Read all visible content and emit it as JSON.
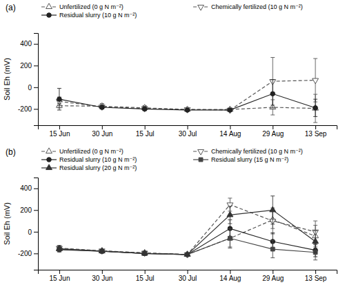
{
  "chart_data": [
    {
      "type": "line",
      "title": "(a)",
      "ylabel": "Soil Eh (mV)",
      "categories": [
        "15 Jun",
        "30 Jun",
        "15 Jul",
        "30 Jul",
        "14 Aug",
        "29 Aug",
        "13 Sep"
      ],
      "series": [
        {
          "name": "Unfertilized (0 g N m⁻²)",
          "color": "#555555",
          "marker": "triangle-up-open",
          "line_style": "dashed",
          "values": [
            -170,
            -175,
            -190,
            -205,
            -205,
            -185,
            -195
          ],
          "errors": [
            20,
            25,
            20,
            15,
            15,
            70,
            130
          ]
        },
        {
          "name": "Chemically fertilized (10 g N m⁻²)",
          "color": "#555555",
          "marker": "triangle-down-open",
          "line_style": "dashed",
          "values": [
            -130,
            -180,
            -195,
            -205,
            -210,
            55,
            65
          ],
          "errors": [
            40,
            20,
            20,
            15,
            15,
            220,
            200
          ]
        },
        {
          "name": "Residual slurry (10 g N m⁻²)",
          "color": "#222222",
          "marker": "circle",
          "line_style": "solid",
          "values": [
            -110,
            -185,
            -200,
            -210,
            -210,
            -60,
            -190
          ],
          "errors": [
            100,
            15,
            15,
            10,
            10,
            130,
            80
          ]
        }
      ],
      "ylim": [
        -350,
        500
      ],
      "yticks": [
        -200,
        0,
        200,
        400
      ],
      "grid": false,
      "legend": "top"
    },
    {
      "type": "line",
      "title": "(b)",
      "ylabel": "Soil Eh (mV)",
      "categories": [
        "15 Jun",
        "30 Jun",
        "15 Jul",
        "30 Jul",
        "14 Aug",
        "29 Aug",
        "13 Sep"
      ],
      "series": [
        {
          "name": "Unfertilized (0 g N m⁻²)",
          "color": "#555555",
          "marker": "triangle-up-open",
          "line_style": "dashed",
          "values": [
            -160,
            -178,
            -195,
            -210,
            -60,
            110,
            -40
          ],
          "errors": [
            25,
            15,
            15,
            15,
            80,
            80,
            100
          ]
        },
        {
          "name": "Chemically fertilized (10 g N m⁻²)",
          "color": "#555555",
          "marker": "triangle-down-open",
          "line_style": "dashed",
          "values": [
            -150,
            -175,
            -195,
            -210,
            250,
            100,
            0
          ],
          "errors": [
            25,
            15,
            15,
            15,
            60,
            120,
            100
          ]
        },
        {
          "name": "Residual slurry (10 g N m⁻²)",
          "color": "#222222",
          "marker": "circle",
          "line_style": "solid",
          "values": [
            -165,
            -180,
            -200,
            -210,
            30,
            -90,
            -170
          ],
          "errors": [
            20,
            15,
            15,
            15,
            80,
            80,
            60
          ]
        },
        {
          "name": "Residual slurry (15 g N m⁻²)",
          "color": "#444444",
          "marker": "square",
          "line_style": "solid",
          "values": [
            -160,
            -180,
            -200,
            -210,
            -60,
            -160,
            -190
          ],
          "errors": [
            20,
            15,
            15,
            15,
            90,
            80,
            70
          ]
        },
        {
          "name": "Residual slurry (20 g N m⁻²)",
          "color": "#333333",
          "marker": "triangle-up",
          "line_style": "solid",
          "values": [
            -155,
            -178,
            -200,
            -210,
            155,
            200,
            -90
          ],
          "errors": [
            20,
            15,
            15,
            15,
            80,
            130,
            100
          ]
        }
      ],
      "ylim": [
        -350,
        500
      ],
      "yticks": [
        -200,
        0,
        200,
        400
      ],
      "grid": false,
      "legend": "top"
    }
  ]
}
